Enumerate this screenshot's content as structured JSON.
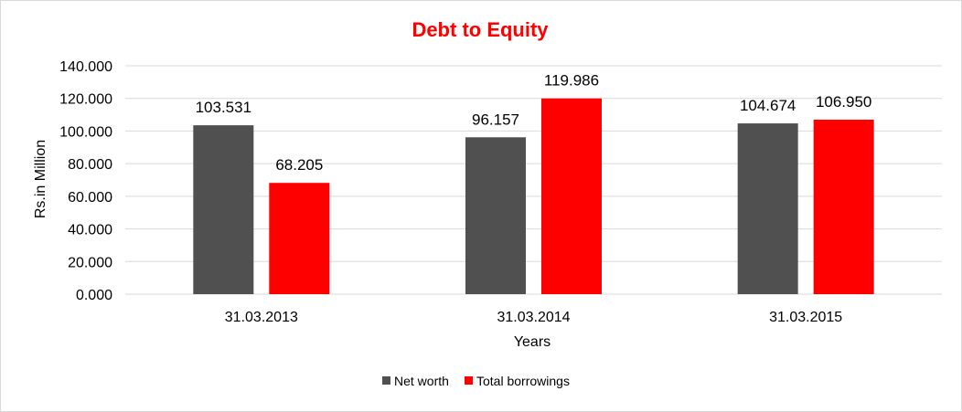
{
  "chart_data": {
    "type": "bar",
    "title": "Debt to Equity",
    "xlabel": "Years",
    "ylabel": "Rs.in Million",
    "categories": [
      "31.03.2013",
      "31.03.2014",
      "31.03.2015"
    ],
    "series": [
      {
        "name": "Net worth",
        "values": [
          103.531,
          96.157,
          104.674
        ],
        "labels": [
          "103.531",
          "96.157",
          "104.674"
        ],
        "color": "#505050"
      },
      {
        "name": "Total borrowings",
        "values": [
          68.205,
          119.986,
          106.95
        ],
        "labels": [
          "68.205",
          "119.986",
          "106.950"
        ],
        "color": "#ff0000"
      }
    ],
    "ylim": [
      0,
      140
    ],
    "yticks": [
      0,
      20,
      40,
      60,
      80,
      100,
      120,
      140
    ],
    "ytick_labels": [
      "0.000",
      "20.000",
      "40.000",
      "60.000",
      "80.000",
      "100.000",
      "120.000",
      "140.000"
    ],
    "grid": true,
    "legend_position": "bottom",
    "title_color": "#ff0000"
  }
}
